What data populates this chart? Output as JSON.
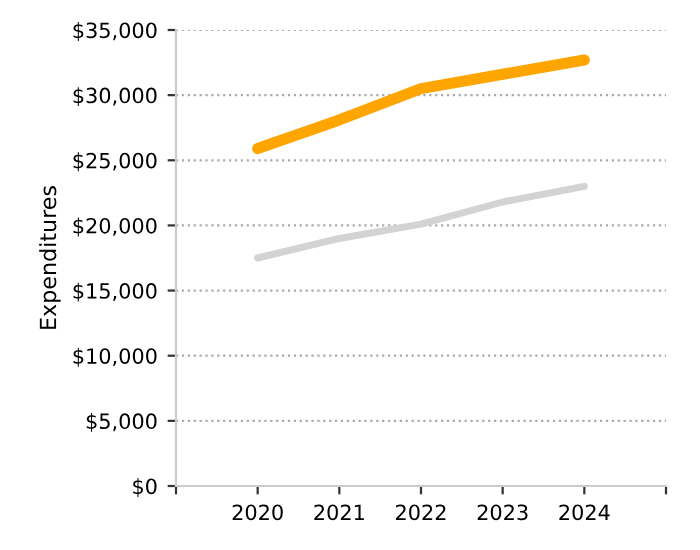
{
  "chart_data": {
    "type": "line",
    "ylabel": "Expenditures",
    "x": [
      2020,
      2021,
      2022,
      2023,
      2024
    ],
    "series": [
      {
        "color": "#ffa500",
        "values": [
          25900,
          28100,
          30500,
          31600,
          32700
        ]
      },
      {
        "color": "#d3d3d3",
        "values": [
          17500,
          19000,
          20100,
          21800,
          23000
        ]
      }
    ],
    "xlim": [
      2019,
      2025
    ],
    "xticks": [
      {
        "value": 2019,
        "label": null
      },
      2020,
      2021,
      2022,
      2023,
      2024,
      {
        "value": 2025,
        "label": null
      }
    ],
    "ylim": [
      0,
      35000
    ],
    "yticks": [
      {
        "value": 0,
        "label": "$0"
      },
      {
        "value": 5000,
        "label": "$5,000"
      },
      {
        "value": 10000,
        "label": "$10,000"
      },
      {
        "value": 15000,
        "label": "$15,000"
      },
      {
        "value": 20000,
        "label": "$20,000"
      },
      {
        "value": 25000,
        "label": "$25,000"
      },
      {
        "value": 30000,
        "label": "$30,000"
      },
      {
        "value": 35000,
        "label": "$35,000"
      }
    ],
    "grid": "y",
    "marker": "none",
    "line_style": "solid",
    "legend": false
  }
}
